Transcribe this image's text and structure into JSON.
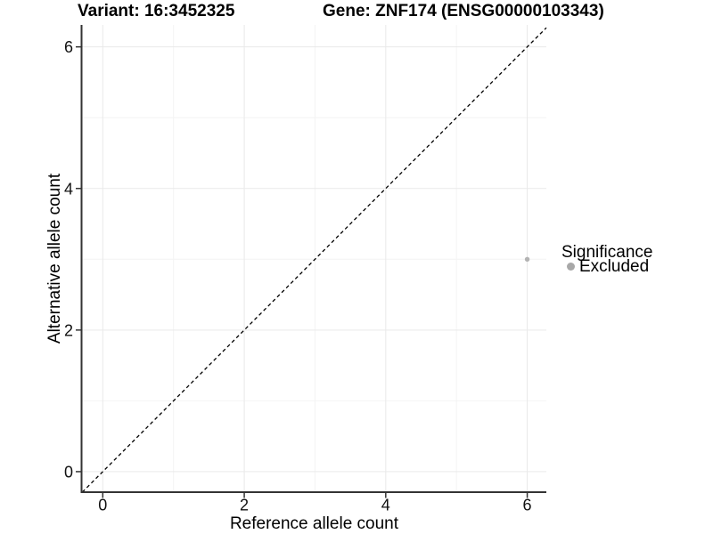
{
  "chart_data": {
    "type": "scatter",
    "title_left": "Variant: 16:3452325",
    "title_right": "Gene: ZNF174 (ENSG00000103343)",
    "xlabel": "Reference allele count",
    "ylabel": "Alternative allele count",
    "xlim": [
      -0.3,
      6.27
    ],
    "ylim": [
      -0.29,
      6.31
    ],
    "xticks": [
      0,
      2,
      4,
      6
    ],
    "yticks": [
      0,
      2,
      4,
      6
    ],
    "minor_xticks": [
      1,
      3,
      5
    ],
    "minor_yticks": [
      1,
      3,
      5
    ],
    "grid": "major+minor",
    "identity_line": {
      "type": "y=x",
      "style": "dashed",
      "color": "#000000"
    },
    "series": [
      {
        "name": "Excluded",
        "color": "#b3b3b3",
        "point_radius": 2.7,
        "points": [
          [
            6,
            3
          ]
        ]
      }
    ],
    "legend": {
      "position": "right",
      "title": "Significance",
      "items": [
        {
          "label": "Excluded",
          "color": "#a8a8a8"
        }
      ]
    },
    "colors": {
      "grid_major": "#e9e9e9",
      "grid_minor": "#f4f4f4",
      "axis_line": "#333333",
      "tick_text": "#111111",
      "background": "#ffffff"
    }
  }
}
